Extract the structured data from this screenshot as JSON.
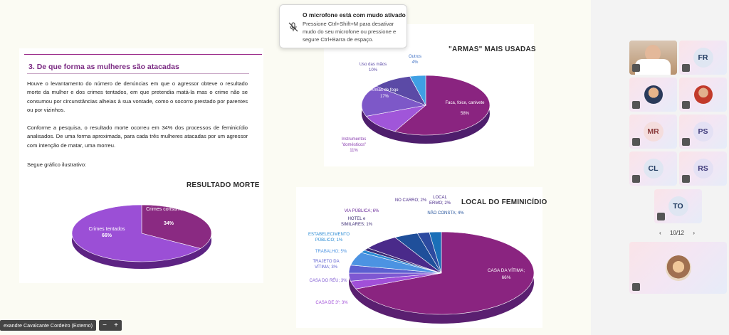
{
  "toast": {
    "title": "O microfone está com mudo ativado",
    "body": "Pressione Ctrl+Shift+M para desativar mudo do seu microfone ou pressione e segure Ctrl+Barra de espaço."
  },
  "document": {
    "section_number": "3.",
    "section_title": "De que forma as mulheres são atacadas",
    "paragraph1": "Houve o levantamento do número de denúncias em que o agressor obteve o resultado morte da mulher e dos crimes tentados, em que pretendia matá-la mas o crime não se consumou por circunstâncias alheias à sua vontade, como o socorro prestado por parentes ou por vizinhos.",
    "paragraph2": "Conforme a pesquisa, o resultado morte ocorreu em 34% dos processos de feminicídio analisados. De uma forma aproximada, para cada três mulheres atacadas por um agressor com intenção de matar, uma morreu.",
    "paragraph3": "Segue gráfico ilustrativo:"
  },
  "chart_data": [
    {
      "type": "pie",
      "title": "RESULTADO MORTE",
      "slices": [
        {
          "label": "Crimes consumados",
          "value": 34,
          "display": "34%",
          "color": "#8a2a82"
        },
        {
          "label": "Crimes tentados",
          "value": 66,
          "display": "66%",
          "color": "#9b4fd6"
        }
      ]
    },
    {
      "type": "pie",
      "title": "\"ARMAS\" MAIS USADAS",
      "slices": [
        {
          "label": "Faca, foice, canivete",
          "value": 58,
          "display": "58%",
          "color": "#8a2480"
        },
        {
          "label": "Instrumentos \"domésticos\"",
          "value": 11,
          "display": "11%",
          "color": "#a056d9"
        },
        {
          "label": "Armas de fogo",
          "value": 17,
          "display": "17%",
          "color": "#7d58c8"
        },
        {
          "label": "Uso das mãos",
          "value": 10,
          "display": "10%",
          "color": "#5b4aa6"
        },
        {
          "label": "Outros",
          "value": 4,
          "display": "4%",
          "color": "#3fa0e4"
        }
      ]
    },
    {
      "type": "pie",
      "title": "LOCAL DO FEMINICÍDIO",
      "slices": [
        {
          "label": "CASA DA VÍTIMA",
          "value": 66,
          "display": "66%",
          "color": "#8a2480"
        },
        {
          "label": "CASA DE 3º",
          "value": 3,
          "display": "3%",
          "color": "#a14fd8"
        },
        {
          "label": "CASA DO RÉU",
          "value": 3,
          "display": "3%",
          "color": "#7e58d2"
        },
        {
          "label": "TRAJETO DA VÍTIMA",
          "value": 3,
          "display": "3%",
          "color": "#5c5fd0"
        },
        {
          "label": "TRABALHO",
          "value": 5,
          "display": "5%",
          "color": "#4c93e2"
        },
        {
          "label": "ESTABELECIMENTO PÚBLICO",
          "value": 1,
          "display": "1%",
          "color": "#2a8bd4"
        },
        {
          "label": "HOTEL e SIMILARES",
          "value": 1,
          "display": "1%",
          "color": "#3b2a74"
        },
        {
          "label": "VIA PÚBLICA",
          "value": 6,
          "display": "6%",
          "color": "#4a2a8a"
        },
        {
          "label": "NÃO CONSTA",
          "value": 4,
          "display": "4%",
          "color": "#1f4f9a"
        },
        {
          "label": "NO CARRO",
          "value": 2,
          "display": "2%",
          "color": "#2c4aa0"
        },
        {
          "label": "LOCAL ERMO",
          "value": 2,
          "display": "2%",
          "color": "#1a6fb8"
        }
      ]
    }
  ],
  "labels": {
    "c1": {
      "consumados": "Crimes consumados",
      "consumados_pct": "34%",
      "tentados": "Crimes tentados",
      "tentados_pct": "66%"
    },
    "c2": {
      "outros": "Outros",
      "outros_pct": "4%",
      "maos": "Uso das mãos",
      "maos_pct": "10%",
      "fogo": "Armas de fogo",
      "fogo_pct": "17%",
      "faca": "Faca, foice, canivete",
      "faca_pct": "58%",
      "inst": "Instrumentos",
      "inst2": "\"domésticos\"",
      "inst_pct": "11%"
    },
    "c3": {
      "carro": "NO CARRO; 2%",
      "ermo1": "LOCAL",
      "ermo2": "ERMO; 2%",
      "via": "VIA PÚBLICA; 6%",
      "hotel1": "HOTEL e",
      "hotel2": "SIMILARES; 1%",
      "nconsta": "NÃO CONSTA; 4%",
      "estab1": "ESTABELECIMENTO",
      "estab2": "PÚBLICO; 1%",
      "trabalho": "TRABALHO; 5%",
      "trajeto1": "TRAJETO DA",
      "trajeto2": "VÍTIMA; 3%",
      "reu": "CASA DO RÉU; 3%",
      "terceiro": "CASA DE 3º; 3%",
      "vitima1": "CASA DA VÍTIMA;",
      "vitima2": "66%"
    }
  },
  "bottom_bar": {
    "presenter_name": "exandre Cavalcante Cordeiro (Externo)",
    "zoom_out": "−",
    "zoom_in": "+"
  },
  "participants": [
    {
      "initials": "FR",
      "color": "#1f3a5f"
    },
    {
      "initials": "MR",
      "color": "#8a3b3b"
    },
    {
      "initials": "PS",
      "color": "#3e3a7a"
    },
    {
      "initials": "CL",
      "color": "#1f3a5f"
    },
    {
      "initials": "RS",
      "color": "#3e3a7a"
    },
    {
      "initials": "TO",
      "color": "#1f3a5f"
    }
  ],
  "pager": {
    "prev": "‹",
    "label": "10/12",
    "next": "›"
  }
}
